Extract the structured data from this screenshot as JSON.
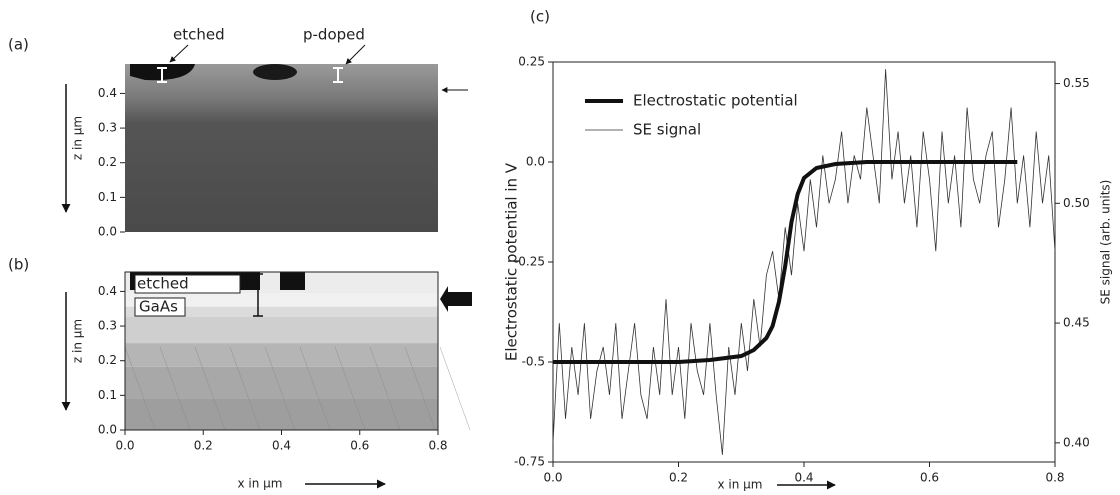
{
  "chart_data": [
    {
      "type": "image",
      "panel": "(a)",
      "ylabel": "z in μm",
      "ylim": [
        0,
        0.485
      ],
      "yticks": [
        {
          "value": 0,
          "label": "0.0"
        },
        0.1,
        0.2,
        0.3,
        0.4
      ],
      "annotations": [
        "etched",
        "p-doped"
      ]
    },
    {
      "type": "mesh",
      "panel": "(b)",
      "xlabel": "x in μm",
      "xlim": [
        0,
        0.8
      ],
      "xticks": [
        {
          "value": 0,
          "label": "0.0"
        },
        0.2,
        0.4,
        0.6,
        0.8
      ],
      "ylabel": "z in μm",
      "ylim": [
        0,
        0.456
      ],
      "yticks": [
        {
          "value": 0,
          "label": "0.0"
        },
        0.1,
        0.2,
        0.3,
        0.4
      ],
      "annotations": [
        "etched",
        "GaAs"
      ]
    },
    {
      "type": "line",
      "panel": "(c)",
      "xlabel": "x in μm",
      "ylabel": "Electrostatic potential in V",
      "y2label": "SE signal (arb. units)",
      "xlim": [
        0,
        0.8
      ],
      "xticks": [
        {
          "value": 0,
          "label": "0.0"
        },
        0.2,
        0.4,
        0.6,
        0.8
      ],
      "ylim": [
        -0.75,
        0.25
      ],
      "yticks": [
        -0.75,
        -0.5,
        -0.25,
        {
          "value": 0,
          "label": "0.0"
        },
        0.25
      ],
      "y2lim": [
        0.392,
        0.559
      ],
      "y2ticks": [
        {
          "value": 0.4,
          "label": "0.40"
        },
        0.45,
        {
          "value": 0.5,
          "label": "0.50"
        },
        0.55
      ],
      "series": [
        {
          "name": "Electrostatic potential",
          "color": "#111111",
          "width": 4,
          "x": [
            0,
            0.05,
            0.1,
            0.15,
            0.2,
            0.25,
            0.3,
            0.32,
            0.34,
            0.35,
            0.36,
            0.37,
            0.38,
            0.39,
            0.4,
            0.42,
            0.45,
            0.5,
            0.56,
            0.74
          ],
          "values": [
            -0.5,
            -0.5,
            -0.5,
            -0.5,
            -0.5,
            -0.495,
            -0.485,
            -0.47,
            -0.44,
            -0.41,
            -0.35,
            -0.26,
            -0.15,
            -0.08,
            -0.04,
            -0.015,
            -0.005,
            0,
            0,
            0
          ]
        },
        {
          "name": "SE signal",
          "color": "#333333",
          "width": 0.8,
          "axis": "y2",
          "x": [
            0,
            0.01,
            0.02,
            0.03,
            0.04,
            0.05,
            0.06,
            0.07,
            0.08,
            0.09,
            0.1,
            0.11,
            0.12,
            0.13,
            0.14,
            0.15,
            0.16,
            0.17,
            0.18,
            0.19,
            0.2,
            0.21,
            0.22,
            0.23,
            0.24,
            0.25,
            0.26,
            0.27,
            0.28,
            0.29,
            0.3,
            0.31,
            0.32,
            0.33,
            0.34,
            0.35,
            0.36,
            0.37,
            0.38,
            0.39,
            0.4,
            0.41,
            0.42,
            0.43,
            0.44,
            0.45,
            0.46,
            0.47,
            0.48,
            0.49,
            0.5,
            0.51,
            0.52,
            0.53,
            0.54,
            0.55,
            0.56,
            0.57,
            0.58,
            0.59,
            0.6,
            0.61,
            0.62,
            0.63,
            0.64,
            0.65,
            0.66,
            0.67,
            0.68,
            0.69,
            0.7,
            0.71,
            0.72,
            0.73,
            0.74,
            0.75,
            0.76,
            0.77,
            0.78,
            0.79,
            0.8
          ],
          "values": [
            0.4,
            0.45,
            0.41,
            0.44,
            0.42,
            0.45,
            0.41,
            0.43,
            0.44,
            0.42,
            0.45,
            0.41,
            0.43,
            0.45,
            0.42,
            0.41,
            0.44,
            0.42,
            0.46,
            0.42,
            0.44,
            0.41,
            0.45,
            0.43,
            0.42,
            0.45,
            0.42,
            0.395,
            0.44,
            0.42,
            0.45,
            0.43,
            0.46,
            0.44,
            0.47,
            0.48,
            0.46,
            0.49,
            0.47,
            0.5,
            0.48,
            0.51,
            0.49,
            0.52,
            0.5,
            0.51,
            0.53,
            0.5,
            0.52,
            0.51,
            0.54,
            0.52,
            0.5,
            0.556,
            0.51,
            0.53,
            0.5,
            0.52,
            0.49,
            0.53,
            0.51,
            0.48,
            0.53,
            0.5,
            0.52,
            0.49,
            0.54,
            0.51,
            0.5,
            0.52,
            0.53,
            0.49,
            0.51,
            0.54,
            0.5,
            0.52,
            0.49,
            0.53,
            0.5,
            0.52,
            0.48
          ]
        }
      ]
    }
  ]
}
